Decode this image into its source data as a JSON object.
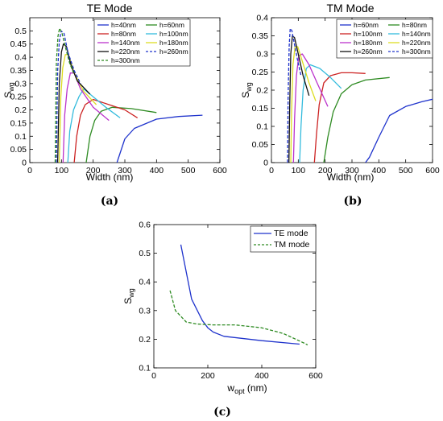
{
  "chart_data": [
    {
      "type": "line",
      "title": "TE Mode",
      "xlabel": "Width (nm)",
      "ylabel": "S",
      "ylabel_sub": "wg",
      "panel_label": "(a)",
      "xlim": [
        0,
        600
      ],
      "ylim": [
        0,
        0.55
      ],
      "xticks": [
        "0",
        "100",
        "200",
        "300",
        "400",
        "500",
        "600"
      ],
      "yticks": [
        "0",
        "0.05",
        "0.1",
        "0.15",
        "0.2",
        "0.25",
        "0.3",
        "0.35",
        "0.4",
        "0.45",
        "0.5"
      ],
      "legend_position": "top-right",
      "series": [
        {
          "name": "h=40nm",
          "color": "#1f33cc",
          "dash": "solid",
          "points": [
            [
              275,
              0
            ],
            [
              300,
              0.09
            ],
            [
              330,
              0.13
            ],
            [
              400,
              0.165
            ],
            [
              470,
              0.175
            ],
            [
              545,
              0.18
            ]
          ]
        },
        {
          "name": "h=60nm",
          "color": "#2e8b22",
          "dash": "solid",
          "points": [
            [
              178,
              0
            ],
            [
              190,
              0.1
            ],
            [
              205,
              0.16
            ],
            [
              225,
              0.195
            ],
            [
              260,
              0.21
            ],
            [
              320,
              0.205
            ],
            [
              400,
              0.19
            ]
          ]
        },
        {
          "name": "h=80nm",
          "color": "#cc2222",
          "dash": "solid",
          "points": [
            [
              140,
              0
            ],
            [
              148,
              0.1
            ],
            [
              160,
              0.18
            ],
            [
              175,
              0.22
            ],
            [
              200,
              0.24
            ],
            [
              250,
              0.22
            ],
            [
              300,
              0.2
            ],
            [
              340,
              0.17
            ]
          ]
        },
        {
          "name": "h=100nm",
          "color": "#33bbdd",
          "dash": "solid",
          "points": [
            [
              120,
              0
            ],
            [
              126,
              0.12
            ],
            [
              138,
              0.2
            ],
            [
              155,
              0.25
            ],
            [
              170,
              0.28
            ],
            [
              200,
              0.25
            ],
            [
              240,
              0.21
            ],
            [
              285,
              0.17
            ]
          ]
        },
        {
          "name": "h=140nm",
          "color": "#bb33cc",
          "dash": "solid",
          "points": [
            [
              105,
              0
            ],
            [
              110,
              0.18
            ],
            [
              118,
              0.28
            ],
            [
              128,
              0.34
            ],
            [
              140,
              0.34
            ],
            [
              160,
              0.28
            ],
            [
              200,
              0.21
            ],
            [
              250,
              0.16
            ]
          ]
        },
        {
          "name": "h=180nm",
          "color": "#dddd22",
          "dash": "solid",
          "points": [
            [
              93,
              0
            ],
            [
              98,
              0.25
            ],
            [
              104,
              0.36
            ],
            [
              112,
              0.41
            ],
            [
              122,
              0.41
            ],
            [
              140,
              0.34
            ],
            [
              170,
              0.27
            ],
            [
              210,
              0.22
            ]
          ]
        },
        {
          "name": "h=220nm",
          "color": "#111111",
          "dash": "solid",
          "points": [
            [
              88,
              0
            ],
            [
              93,
              0.3
            ],
            [
              100,
              0.42
            ],
            [
              106,
              0.45
            ],
            [
              116,
              0.44
            ],
            [
              130,
              0.37
            ],
            [
              150,
              0.31
            ],
            [
              190,
              0.26
            ]
          ]
        },
        {
          "name": "h=260nm",
          "color": "#1f33cc",
          "dash": "dashed",
          "points": [
            [
              84,
              0
            ],
            [
              88,
              0.35
            ],
            [
              93,
              0.46
            ],
            [
              99,
              0.5
            ],
            [
              108,
              0.49
            ],
            [
              120,
              0.42
            ],
            [
              140,
              0.35
            ],
            [
              160,
              0.3
            ]
          ]
        },
        {
          "name": "h=300nm",
          "color": "#2e8b22",
          "dash": "dashed",
          "points": [
            [
              80,
              0
            ],
            [
              84,
              0.38
            ],
            [
              89,
              0.48
            ],
            [
              94,
              0.51
            ],
            [
              102,
              0.49
            ],
            [
              112,
              0.44
            ],
            [
              125,
              0.38
            ],
            [
              138,
              0.34
            ]
          ]
        }
      ]
    },
    {
      "type": "line",
      "title": "TM Mode",
      "xlabel": "Width (nm)",
      "ylabel": "S",
      "ylabel_sub": "wg",
      "panel_label": "(b)",
      "xlim": [
        0,
        600
      ],
      "ylim": [
        0,
        0.4
      ],
      "xticks": [
        "0",
        "100",
        "200",
        "300",
        "400",
        "500",
        "600"
      ],
      "yticks": [
        "0",
        "0.05",
        "0.1",
        "0.15",
        "0.2",
        "0.25",
        "0.3",
        "0.35",
        "0.4"
      ],
      "legend_position": "top-right",
      "series": [
        {
          "name": "h=60nm",
          "color": "#1f33cc",
          "dash": "solid",
          "points": [
            [
              350,
              0
            ],
            [
              365,
              0.015
            ],
            [
              400,
              0.07
            ],
            [
              440,
              0.13
            ],
            [
              500,
              0.155
            ],
            [
              560,
              0.168
            ],
            [
              600,
              0.175
            ]
          ]
        },
        {
          "name": "h=80nm",
          "color": "#2e8b22",
          "dash": "solid",
          "points": [
            [
              195,
              0
            ],
            [
              210,
              0.07
            ],
            [
              230,
              0.14
            ],
            [
              260,
              0.19
            ],
            [
              300,
              0.215
            ],
            [
              350,
              0.228
            ],
            [
              440,
              0.235
            ]
          ]
        },
        {
          "name": "h=100nm",
          "color": "#cc2222",
          "dash": "solid",
          "points": [
            [
              160,
              0
            ],
            [
              168,
              0.08
            ],
            [
              178,
              0.16
            ],
            [
              195,
              0.22
            ],
            [
              220,
              0.24
            ],
            [
              260,
              0.248
            ],
            [
              300,
              0.248
            ],
            [
              350,
              0.246
            ]
          ]
        },
        {
          "name": "h=140nm",
          "color": "#33bbdd",
          "dash": "solid",
          "points": [
            [
              105,
              0
            ],
            [
              110,
              0.1
            ],
            [
              118,
              0.2
            ],
            [
              130,
              0.26
            ],
            [
              145,
              0.27
            ],
            [
              180,
              0.26
            ],
            [
              220,
              0.235
            ],
            [
              260,
              0.205
            ]
          ]
        },
        {
          "name": "h=180nm",
          "color": "#bb33cc",
          "dash": "solid",
          "points": [
            [
              82,
              0
            ],
            [
              86,
              0.12
            ],
            [
              93,
              0.24
            ],
            [
              102,
              0.295
            ],
            [
              115,
              0.3
            ],
            [
              140,
              0.27
            ],
            [
              170,
              0.22
            ],
            [
              210,
              0.155
            ]
          ]
        },
        {
          "name": "h=220nm",
          "color": "#dddd22",
          "dash": "solid",
          "points": [
            [
              72,
              0
            ],
            [
              75,
              0.14
            ],
            [
              80,
              0.27
            ],
            [
              88,
              0.32
            ],
            [
              98,
              0.32
            ],
            [
              115,
              0.28
            ],
            [
              140,
              0.22
            ],
            [
              165,
              0.17
            ]
          ]
        },
        {
          "name": "h=260nm",
          "color": "#111111",
          "dash": "solid",
          "points": [
            [
              65,
              0
            ],
            [
              68,
              0.16
            ],
            [
              72,
              0.3
            ],
            [
              78,
              0.35
            ],
            [
              86,
              0.345
            ],
            [
              100,
              0.3
            ],
            [
              118,
              0.24
            ],
            [
              140,
              0.185
            ]
          ]
        },
        {
          "name": "h=300nm",
          "color": "#1f33cc",
          "dash": "dashed",
          "points": [
            [
              60,
              0
            ],
            [
              62,
              0.18
            ],
            [
              66,
              0.32
            ],
            [
              70,
              0.37
            ],
            [
              76,
              0.365
            ],
            [
              85,
              0.33
            ],
            [
              98,
              0.28
            ],
            [
              110,
              0.24
            ]
          ]
        }
      ]
    },
    {
      "type": "line",
      "xlabel": "w",
      "xlabel_sub": "opt",
      "xlabel_suffix": " (nm)",
      "ylabel": "S",
      "ylabel_sub": "wg",
      "panel_label": "(c)",
      "xlim": [
        0,
        600
      ],
      "ylim": [
        0.1,
        0.6
      ],
      "xticks": [
        "0",
        "200",
        "400",
        "600"
      ],
      "yticks": [
        "0.1",
        "0.2",
        "0.3",
        "0.4",
        "0.5",
        "0.6"
      ],
      "legend_position": "top-right",
      "series": [
        {
          "name": "TE mode",
          "color": "#1f33cc",
          "dash": "solid",
          "points": [
            [
              100,
              0.53
            ],
            [
              140,
              0.34
            ],
            [
              180,
              0.265
            ],
            [
              200,
              0.24
            ],
            [
              220,
              0.225
            ],
            [
              260,
              0.21
            ],
            [
              400,
              0.195
            ],
            [
              540,
              0.183
            ]
          ]
        },
        {
          "name": "TM mode",
          "color": "#2e8b22",
          "dash": "dashed",
          "points": [
            [
              60,
              0.37
            ],
            [
              80,
              0.3
            ],
            [
              120,
              0.26
            ],
            [
              160,
              0.253
            ],
            [
              220,
              0.25
            ],
            [
              300,
              0.25
            ],
            [
              400,
              0.24
            ],
            [
              480,
              0.22
            ],
            [
              560,
              0.185
            ],
            [
              570,
              0.18
            ]
          ]
        }
      ]
    }
  ]
}
